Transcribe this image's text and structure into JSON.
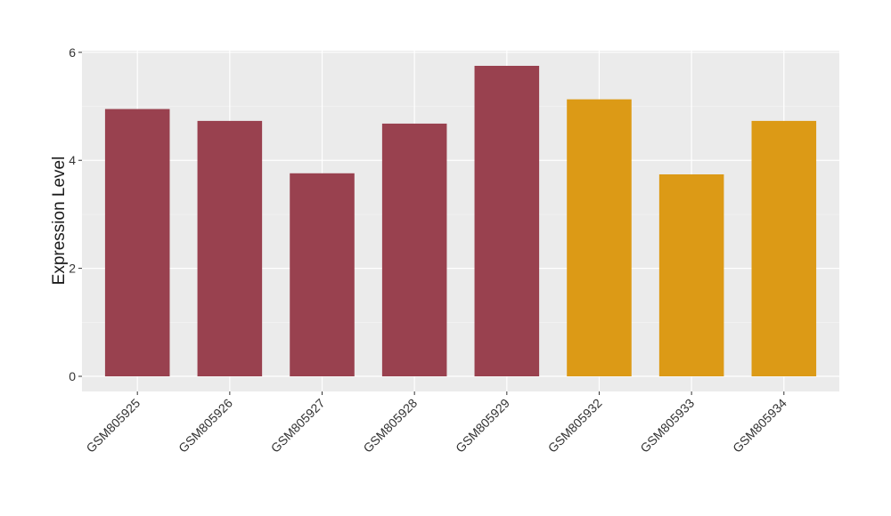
{
  "chart_data": {
    "type": "bar",
    "y_label": "Expression Level",
    "categories": [
      "GSM805925",
      "GSM805926",
      "GSM805927",
      "GSM805928",
      "GSM805929",
      "GSM805932",
      "GSM805933",
      "GSM805934"
    ],
    "values": [
      4.95,
      4.73,
      3.76,
      4.68,
      5.75,
      5.13,
      3.74,
      4.73
    ],
    "colors": [
      "#99414f",
      "#99414f",
      "#99414f",
      "#99414f",
      "#99414f",
      "#dc9a16",
      "#dc9a16",
      "#dc9a16"
    ],
    "ylim": [
      -0.28,
      6.03
    ],
    "yticks": [
      0,
      2,
      4,
      6
    ],
    "y_minor_ticks": [
      1,
      3,
      5
    ],
    "grid": true
  }
}
